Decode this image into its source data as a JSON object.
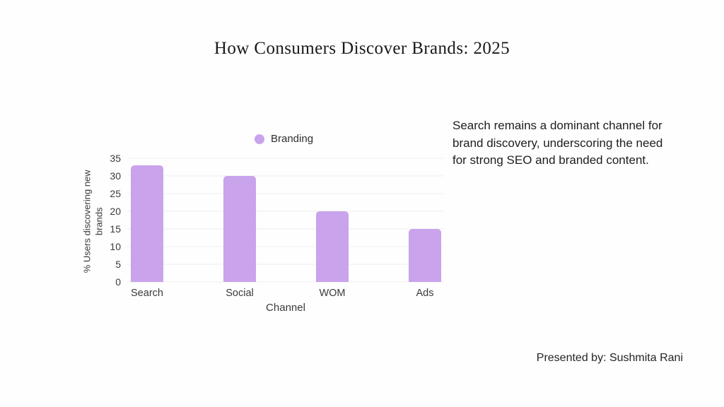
{
  "page": {
    "title": "How Consumers Discover Brands: 2025",
    "annotation": "Search remains a dominant channel for brand discovery, underscoring the need for strong SEO and branded content.",
    "credit": "Presented by: Sushmita Rani"
  },
  "chart_data": {
    "type": "bar",
    "title": "",
    "categories": [
      "Search",
      "Social",
      "WOM",
      "Ads"
    ],
    "values": [
      33,
      30,
      20,
      15
    ],
    "series": [
      {
        "name": "Branding",
        "values": [
          33,
          30,
          20,
          15
        ]
      }
    ],
    "xlabel": "Channel",
    "ylabel": "% Users discovering new brands",
    "ylim": [
      0,
      35
    ],
    "yticks": [
      0,
      5,
      10,
      15,
      20,
      25,
      30,
      35
    ],
    "grid": true,
    "legend_position": "top",
    "legend_label": "Branding",
    "bar_color": "#c9a3ec",
    "gridline_color": "#efefef",
    "tick_text_color": "#3a3a3a"
  }
}
